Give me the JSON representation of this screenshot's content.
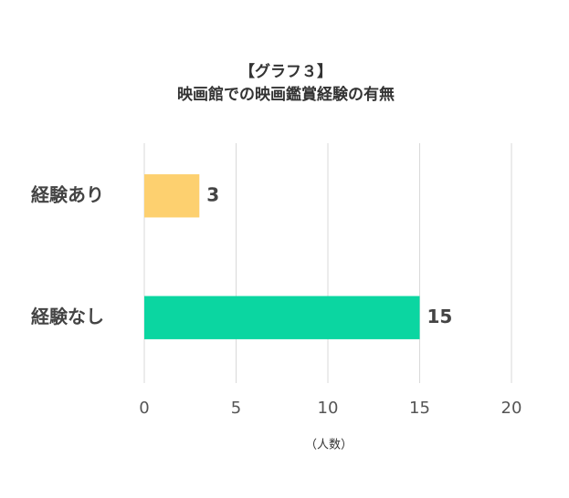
{
  "chart_data": {
    "type": "barh",
    "title": "【グラフ３】",
    "subtitle": "映画館での映画鑑賞経験の有無",
    "categories": [
      "経験あり",
      "経験なし"
    ],
    "values": [
      3,
      15
    ],
    "colors": [
      "#fdd06f",
      "#0bd6a1"
    ],
    "xlabel": "（人数）",
    "xlim": [
      0,
      20
    ],
    "xticks": [
      0,
      5,
      10,
      15,
      20
    ],
    "grid": true
  }
}
